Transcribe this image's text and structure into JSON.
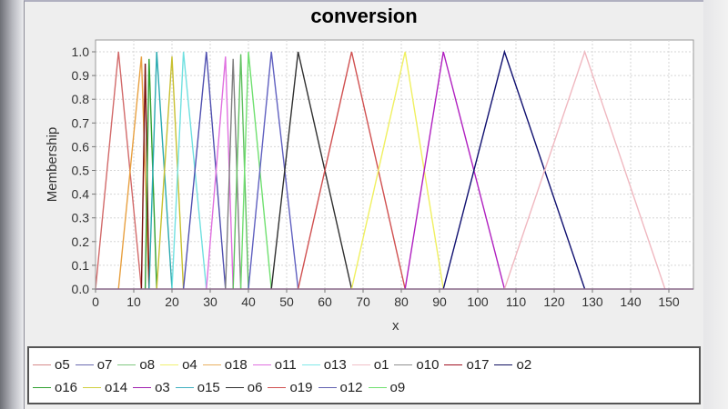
{
  "chart_data": {
    "type": "line",
    "title": "conversion",
    "xlabel": "x",
    "ylabel": "Membership",
    "xlim": [
      0,
      156
    ],
    "ylim": [
      0,
      1.05
    ],
    "x_ticks": [
      0,
      10,
      20,
      30,
      40,
      50,
      60,
      70,
      80,
      90,
      100,
      110,
      120,
      130,
      140,
      150
    ],
    "y_ticks": [
      "0.0",
      "0.1",
      "0.2",
      "0.3",
      "0.4",
      "0.5",
      "0.6",
      "0.7",
      "0.8",
      "0.9",
      "1.0"
    ],
    "grid": true,
    "legend_position": "bottom",
    "series": [
      {
        "name": "o5",
        "color": "#d26a6a",
        "x": [
          0,
          6,
          12
        ],
        "y": [
          0,
          1,
          0
        ]
      },
      {
        "name": "o18",
        "color": "#e8a040",
        "x": [
          6,
          12,
          14
        ],
        "y": [
          0,
          0.98,
          0
        ]
      },
      {
        "name": "o17",
        "color": "#7a1010",
        "x": [
          12,
          13,
          14
        ],
        "y": [
          0,
          0.95,
          0
        ]
      },
      {
        "name": "o16",
        "color": "#30a030",
        "x": [
          13,
          14,
          16
        ],
        "y": [
          0,
          0.97,
          0
        ]
      },
      {
        "name": "o15",
        "color": "#2aaab0",
        "x": [
          14,
          16,
          20
        ],
        "y": [
          0,
          1,
          0
        ]
      },
      {
        "name": "o14",
        "color": "#c8c030",
        "x": [
          16,
          20,
          23
        ],
        "y": [
          0,
          0.98,
          0
        ]
      },
      {
        "name": "o13",
        "color": "#70e0e0",
        "x": [
          20,
          23,
          29
        ],
        "y": [
          0,
          1,
          0
        ]
      },
      {
        "name": "o7",
        "color": "#5050b0",
        "x": [
          23,
          29,
          34
        ],
        "y": [
          0,
          1,
          0
        ]
      },
      {
        "name": "o11",
        "color": "#e070e0",
        "x": [
          29,
          34,
          36
        ],
        "y": [
          0,
          0.98,
          0
        ]
      },
      {
        "name": "o10",
        "color": "#808080",
        "x": [
          34,
          36,
          38
        ],
        "y": [
          0,
          0.97,
          0
        ]
      },
      {
        "name": "o8",
        "color": "#60c060",
        "x": [
          36,
          38,
          40
        ],
        "y": [
          0,
          0.99,
          0
        ]
      },
      {
        "name": "o9",
        "color": "#70e070",
        "x": [
          38,
          40,
          46
        ],
        "y": [
          0,
          1,
          0
        ]
      },
      {
        "name": "o12",
        "color": "#6060c0",
        "x": [
          40,
          46,
          53
        ],
        "y": [
          0,
          1,
          0
        ]
      },
      {
        "name": "o6",
        "color": "#303030",
        "x": [
          46,
          53,
          67
        ],
        "y": [
          0,
          1,
          0
        ]
      },
      {
        "name": "o19",
        "color": "#d05050",
        "x": [
          53,
          67,
          81
        ],
        "y": [
          0,
          1,
          0
        ]
      },
      {
        "name": "o4",
        "color": "#f0f060",
        "x": [
          67,
          81,
          91
        ],
        "y": [
          0,
          1,
          0
        ]
      },
      {
        "name": "o3",
        "color": "#b020c0",
        "x": [
          81,
          91,
          107
        ],
        "y": [
          0,
          1,
          0
        ]
      },
      {
        "name": "o2",
        "color": "#101070",
        "x": [
          91,
          107,
          128
        ],
        "y": [
          0,
          1,
          0
        ]
      },
      {
        "name": "o1",
        "color": "#f0b8c0",
        "x": [
          107,
          128,
          149
        ],
        "y": [
          0,
          1,
          0
        ]
      }
    ]
  },
  "legend": {
    "rows": [
      [
        {
          "name": "o5",
          "color": "#d68a8a"
        },
        {
          "name": "o7",
          "color": "#6a6ab0"
        },
        {
          "name": "o8",
          "color": "#80c880"
        },
        {
          "name": "o4",
          "color": "#f0f070"
        },
        {
          "name": "o18",
          "color": "#e8b060"
        },
        {
          "name": "o11",
          "color": "#e070e0"
        },
        {
          "name": "o13",
          "color": "#80e8e8"
        },
        {
          "name": "o1",
          "color": "#f0c0c8"
        },
        {
          "name": "o10",
          "color": "#909090"
        },
        {
          "name": "o17",
          "color": "#a01020"
        },
        {
          "name": "o2",
          "color": "#101060"
        }
      ],
      [
        {
          "name": "o16",
          "color": "#30a030"
        },
        {
          "name": "o14",
          "color": "#d0d040"
        },
        {
          "name": "o3",
          "color": "#a020b0"
        },
        {
          "name": "o15",
          "color": "#40b0c0"
        },
        {
          "name": "o6",
          "color": "#303030"
        },
        {
          "name": "o19",
          "color": "#d05050"
        },
        {
          "name": "o12",
          "color": "#6060b0"
        },
        {
          "name": "o9",
          "color": "#70e070"
        }
      ]
    ]
  }
}
